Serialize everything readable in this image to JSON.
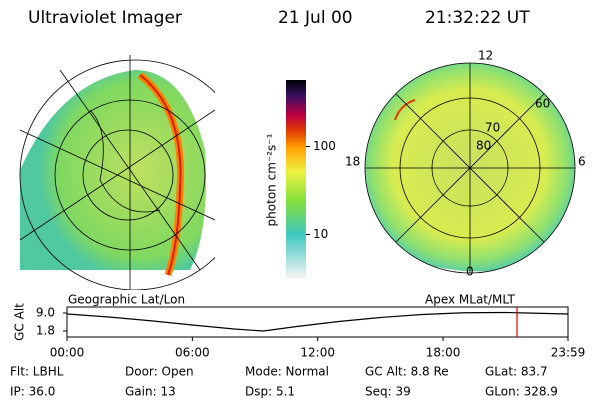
{
  "header": {
    "title": "Ultraviolet Imager",
    "date": "21 Jul 00",
    "time": "21:32:22 UT"
  },
  "colorbar": {
    "label": "photon cm⁻²s⁻¹",
    "scale": "log",
    "lim": [
      3.2,
      570
    ],
    "ticks": [
      10,
      100
    ]
  },
  "panels": {
    "left_caption": "Geographic Lat/Lon",
    "right_caption": "Apex MLat/MLT",
    "mlt_labels": {
      "top": "12",
      "bottom": "0",
      "left": "18",
      "right": "6"
    },
    "mlat_labels": [
      "80",
      "70",
      "60"
    ]
  },
  "chart_data": {
    "type": "line",
    "y_label": "GC Alt",
    "x": [
      0,
      2,
      4,
      6,
      8,
      9.4,
      11,
      13,
      15,
      17,
      19,
      21,
      22,
      23.98
    ],
    "values": [
      8.6,
      7.4,
      5.9,
      4.2,
      2.6,
      1.8,
      3.6,
      5.6,
      7.2,
      8.4,
      9.1,
      9.2,
      9.0,
      8.6
    ],
    "color": "#000000",
    "marker_x": 21.54,
    "marker_color": "#e00000",
    "xlim": [
      0,
      23.98
    ],
    "xticks": [
      {
        "value": 0,
        "label": "00:00"
      },
      {
        "value": 6,
        "label": "06:00"
      },
      {
        "value": 12,
        "label": "12:00"
      },
      {
        "value": 18,
        "label": "18:00"
      },
      {
        "value": 23.98,
        "label": "23:59"
      }
    ],
    "ylim": [
      -0.6,
      11.4
    ],
    "yticks": [
      {
        "value": 9,
        "label": "9.0"
      },
      {
        "value": 1.8,
        "label": "1.8"
      }
    ]
  },
  "footer": {
    "rows": [
      [
        "Flt: LBHL",
        "Door: Open",
        "Mode: Normal",
        "GC Alt: 8.8 Re",
        "GLat: 83.7"
      ],
      [
        "IP: 36.0",
        "Gain: 13",
        "Dsp:   5.1",
        "Seq: 39",
        "GLon: 328.9"
      ]
    ]
  }
}
